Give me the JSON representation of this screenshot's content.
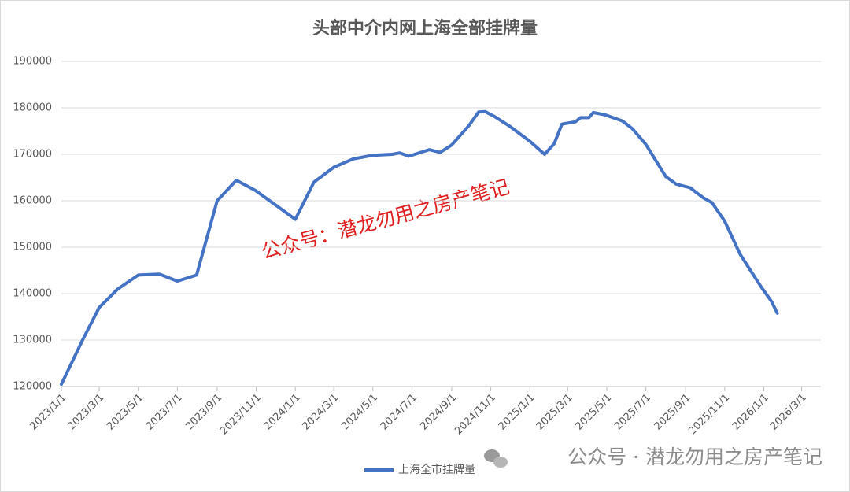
{
  "chart_data": {
    "type": "line",
    "title": "头部中介内网上海全部挂牌量",
    "annotations": [
      "公众号：潜龙勿用之房产笔记",
      "公众号 · 潜龙勿用之房产笔记"
    ],
    "x": [
      "2023/1/1",
      "2023/2/3",
      "2023/3/1",
      "2023/3/30",
      "2023/5/1",
      "2023/6/3",
      "2023/7/1",
      "2023/7/31",
      "2023/9/1",
      "2023/10/1",
      "2023/10/31",
      "2023/12/2",
      "2024/1/1",
      "2024/1/30",
      "2024/3/1",
      "2024/3/31",
      "2024/5/1",
      "2024/5/31",
      "2024/6/12",
      "2024/6/26",
      "2024/7/28",
      "2024/8/14",
      "2024/9/1",
      "2024/9/28",
      "2024/10/13",
      "2024/10/23",
      "2024/11/6",
      "2024/12/1",
      "2025/1/1",
      "2025/1/24",
      "2025/2/8",
      "2025/2/20",
      "2025/3/13",
      "2025/3/21",
      "2025/4/3",
      "2025/4/10",
      "2025/4/28",
      "2025/5/25",
      "2025/6/10",
      "2025/7/1",
      "2025/8/1",
      "2025/8/17",
      "2025/9/8",
      "2025/9/29",
      "2025/10/12",
      "2025/11/1",
      "2025/11/25",
      "2025/12/13",
      "2025/12/28",
      "2026/1/13",
      "2026/1/22"
    ],
    "series": [
      {
        "name": "上海全市挂牌量",
        "color": "#4472c4",
        "values": [
          120500,
          130000,
          137000,
          141000,
          144000,
          144200,
          142700,
          144000,
          160000,
          164400,
          162200,
          159000,
          156000,
          164000,
          167200,
          169000,
          169800,
          170000,
          170300,
          169600,
          171000,
          170400,
          172000,
          176200,
          179100,
          179200,
          178200,
          176000,
          172800,
          170000,
          172300,
          176500,
          177000,
          177900,
          177900,
          179000,
          178500,
          177200,
          175500,
          172100,
          165200,
          163600,
          162800,
          160600,
          159600,
          155600,
          148500,
          144600,
          141400,
          138300,
          135800
        ]
      }
    ],
    "xlim": [
      "2023/1/1",
      "2026/3/31"
    ],
    "xticks": [
      "2023/1/1",
      "2023/3/1",
      "2023/5/1",
      "2023/7/1",
      "2023/9/1",
      "2023/11/1",
      "2024/1/1",
      "2024/3/1",
      "2024/5/1",
      "2024/7/1",
      "2024/9/1",
      "2024/11/1",
      "2025/1/1",
      "2025/3/1",
      "2025/5/1",
      "2025/7/1",
      "2025/9/1",
      "2025/11/1",
      "2026/1/1",
      "2026/3/1"
    ],
    "ylim": [
      120000,
      190000
    ],
    "yticks": [
      120000,
      130000,
      140000,
      150000,
      160000,
      170000,
      180000,
      190000
    ],
    "grid": true
  }
}
